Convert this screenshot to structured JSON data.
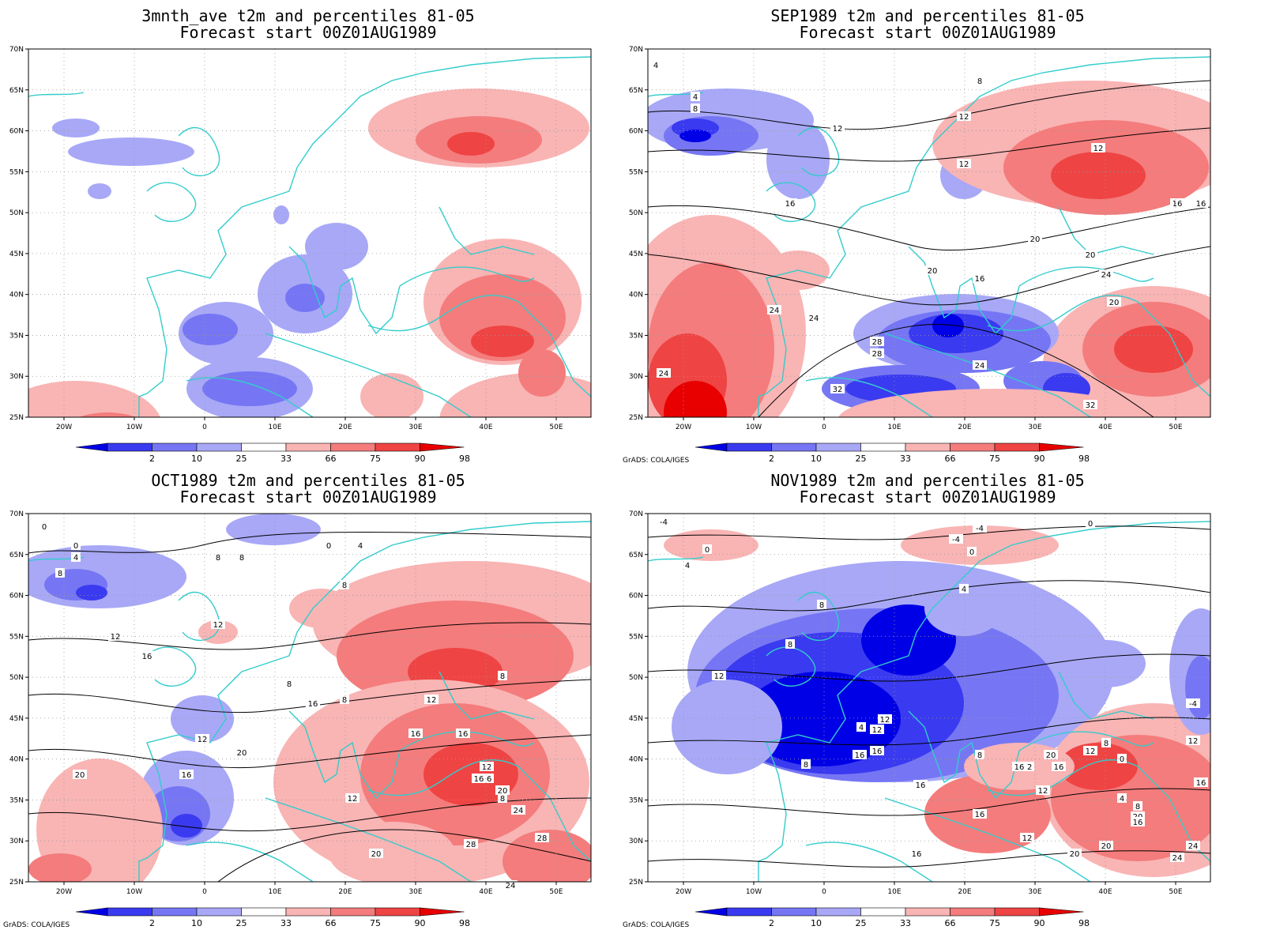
{
  "credit": "GrADS: COLA/IGES",
  "axes": {
    "lat_labels": [
      "70N",
      "65N",
      "60N",
      "55N",
      "50N",
      "45N",
      "40N",
      "35N",
      "30N",
      "25N"
    ],
    "lon_labels": [
      "20W",
      "10W",
      "0",
      "10E",
      "20E",
      "30E",
      "40E",
      "50E"
    ]
  },
  "colorbar": {
    "levels": [
      "2",
      "10",
      "25",
      "33",
      "66",
      "75",
      "90",
      "98"
    ],
    "colors": [
      "#0000e6",
      "#3a3af0",
      "#7676f4",
      "#a8a8f7",
      "#ffffff",
      "#f9b4b4",
      "#f47c7c",
      "#ef4444",
      "#e80000"
    ]
  },
  "colors": {
    "coast": "#33cccc",
    "contour": "#000000"
  },
  "panels": [
    {
      "title_line1": "3mnth_ave t2m and percentiles 81-05",
      "title_line2": "Forecast start 00Z01AUG1989",
      "show_credit": false,
      "contour_labels": []
    },
    {
      "title_line1": "SEP1989 t2m and percentiles 81-05",
      "title_line2": "Forecast start 00Z01AUG1989",
      "show_credit": true,
      "contour_labels": [
        "4",
        "4",
        "8",
        "8",
        "12",
        "12",
        "12",
        "16",
        "16",
        "20",
        "20",
        "16",
        "20",
        "20",
        "24",
        "24",
        "24",
        "28",
        "24",
        "28",
        "32",
        "24",
        "32",
        "12",
        "16"
      ]
    },
    {
      "title_line1": "OCT1989 t2m and percentiles 81-05",
      "title_line2": "Forecast start 00Z01AUG1989",
      "show_credit": true,
      "contour_labels": [
        "0",
        "0",
        "4",
        "8",
        "8",
        "8",
        "8",
        "0",
        "4",
        "8",
        "12",
        "12",
        "16",
        "8",
        "12",
        "8",
        "12",
        "16",
        "16",
        "16",
        "20",
        "20",
        "16",
        "12",
        "16",
        "20",
        "24",
        "28",
        "24",
        "20",
        "16",
        "12",
        "8",
        "28"
      ]
    },
    {
      "title_line1": "NOV1989 t2m and percentiles 81-05",
      "title_line2": "Forecast start 00Z01AUG1989",
      "show_credit": true,
      "contour_labels": [
        "-4",
        "0",
        "4",
        "-4",
        "-4",
        "0",
        "0",
        "4",
        "8",
        "8",
        "12",
        "4",
        "12",
        "16",
        "16",
        "8",
        "12",
        "12",
        "16",
        "20",
        "16",
        "16",
        "12",
        "8",
        "12",
        "8",
        "0",
        "16",
        "12",
        "4",
        "8",
        "12",
        "16",
        "20",
        "24",
        "20",
        "24",
        "-4",
        "16",
        "20",
        "16"
      ]
    }
  ]
}
